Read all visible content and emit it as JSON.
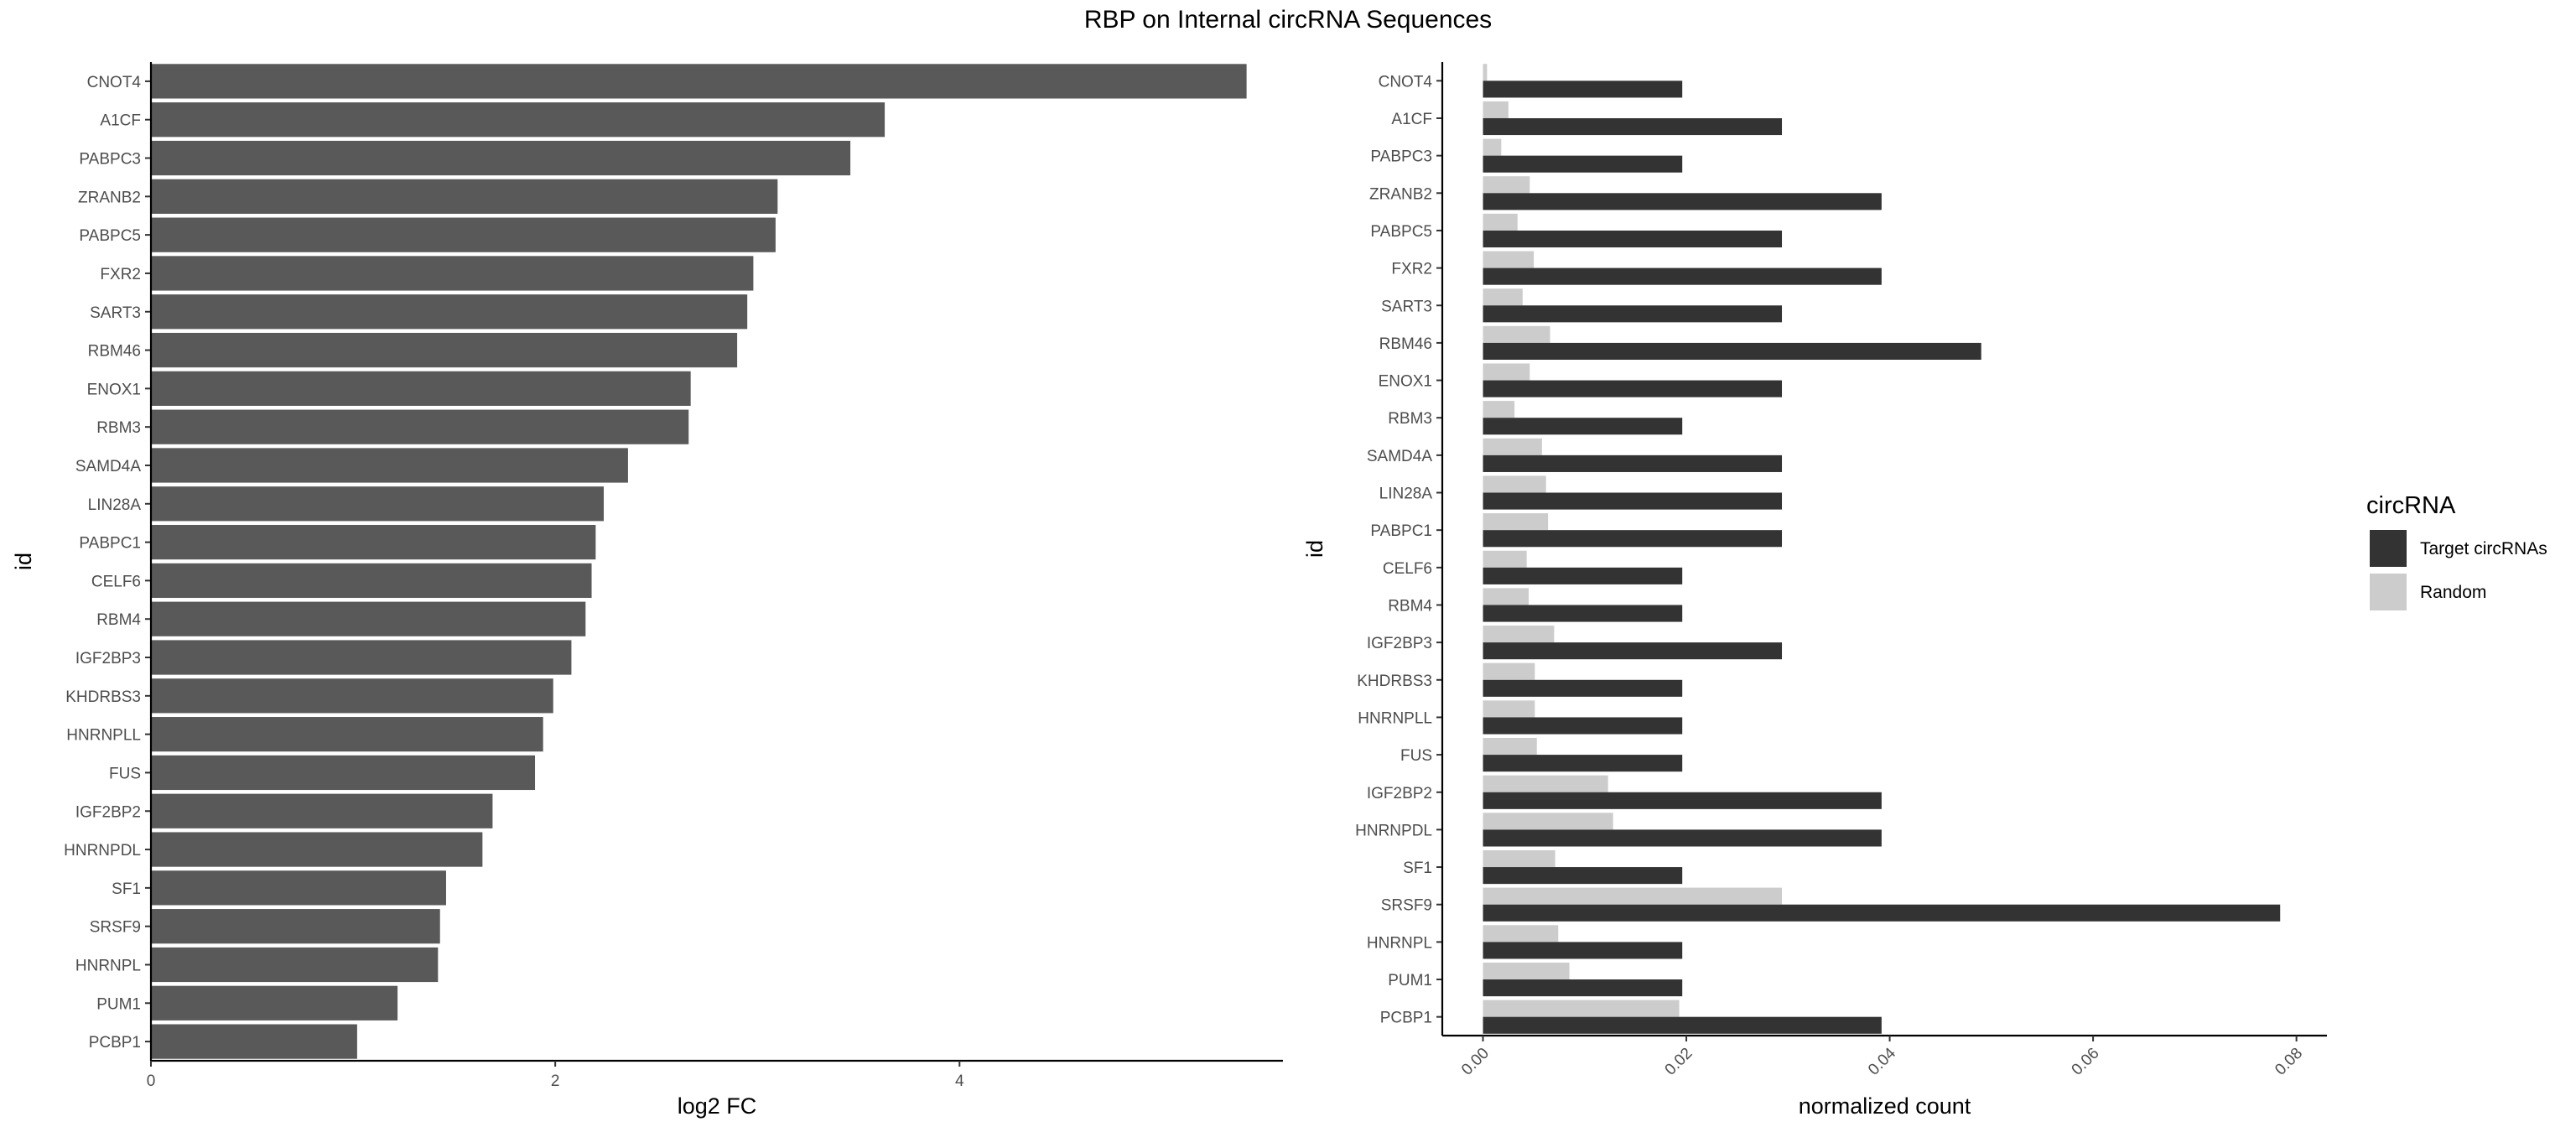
{
  "title": "RBP on Internal circRNA Sequences",
  "chart_data": [
    {
      "type": "bar",
      "orientation": "horizontal",
      "xlabel": "log2 FC",
      "ylabel": "id",
      "xlim": [
        0,
        5.6
      ],
      "xticks": [
        0,
        2,
        4
      ],
      "xtick_labels": [
        "0",
        "2",
        "4"
      ],
      "bar_color": "#595959",
      "categories": [
        "CNOT4",
        "A1CF",
        "PABPC3",
        "ZRANB2",
        "PABPC5",
        "FXR2",
        "SART3",
        "RBM46",
        "ENOX1",
        "RBM3",
        "SAMD4A",
        "LIN28A",
        "PABPC1",
        "CELF6",
        "RBM4",
        "IGF2BP3",
        "KHDRBS3",
        "HNRNPLL",
        "FUS",
        "IGF2BP2",
        "HNRNPDL",
        "SF1",
        "SRSF9",
        "HNRNPL",
        "PUM1",
        "PCBP1"
      ],
      "values": [
        5.42,
        3.63,
        3.46,
        3.1,
        3.09,
        2.98,
        2.95,
        2.9,
        2.67,
        2.66,
        2.36,
        2.24,
        2.2,
        2.18,
        2.15,
        2.08,
        1.99,
        1.94,
        1.9,
        1.69,
        1.64,
        1.46,
        1.43,
        1.42,
        1.22,
        1.02
      ]
    },
    {
      "type": "bar",
      "orientation": "horizontal",
      "xlabel": "normalized count",
      "ylabel": "id",
      "xlim": [
        -0.004,
        0.083
      ],
      "xticks": [
        0,
        0.02,
        0.04,
        0.06,
        0.08
      ],
      "xtick_labels": [
        "0.00",
        "0.02",
        "0.04",
        "0.06",
        "0.08"
      ],
      "legend": {
        "title": "circRNA",
        "position": "right"
      },
      "categories": [
        "CNOT4",
        "A1CF",
        "PABPC3",
        "ZRANB2",
        "PABPC5",
        "FXR2",
        "SART3",
        "RBM46",
        "ENOX1",
        "RBM3",
        "SAMD4A",
        "LIN28A",
        "PABPC1",
        "CELF6",
        "RBM4",
        "IGF2BP3",
        "KHDRBS3",
        "HNRNPLL",
        "FUS",
        "IGF2BP2",
        "HNRNPDL",
        "SF1",
        "SRSF9",
        "HNRNPL",
        "PUM1",
        "PCBP1"
      ],
      "series": [
        {
          "name": "Target circRNAs",
          "color": "#333333",
          "values": [
            0.0196,
            0.0294,
            0.0196,
            0.0392,
            0.0294,
            0.0392,
            0.0294,
            0.049,
            0.0294,
            0.0196,
            0.0294,
            0.0294,
            0.0294,
            0.0196,
            0.0196,
            0.0294,
            0.0196,
            0.0196,
            0.0196,
            0.0392,
            0.0392,
            0.0196,
            0.0784,
            0.0196,
            0.0196,
            0.0392
          ]
        },
        {
          "name": "Random",
          "color": "#cccccc",
          "values": [
            0.0004,
            0.0025,
            0.0018,
            0.0046,
            0.0034,
            0.005,
            0.0039,
            0.0066,
            0.0046,
            0.0031,
            0.0058,
            0.0062,
            0.0064,
            0.0043,
            0.0045,
            0.007,
            0.0051,
            0.0051,
            0.0053,
            0.0123,
            0.0128,
            0.0071,
            0.0294,
            0.0074,
            0.0085,
            0.0193
          ]
        }
      ]
    }
  ]
}
